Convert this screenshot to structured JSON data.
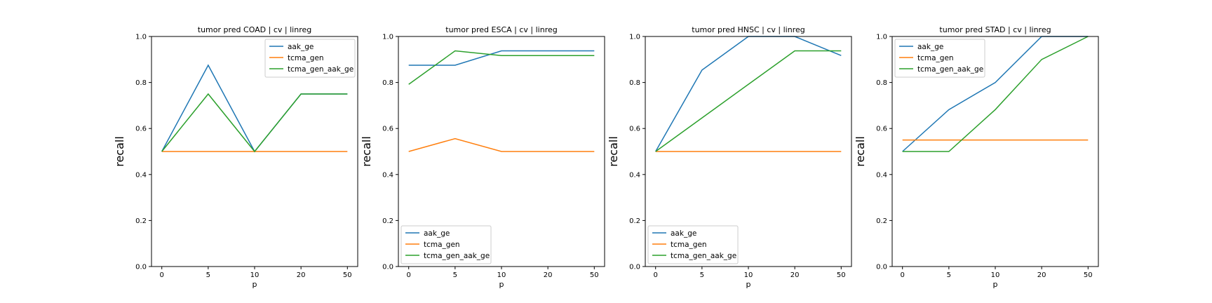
{
  "chart_data": [
    {
      "type": "line",
      "title": "tumor pred COAD | cv | linreg",
      "xlabel": "p",
      "ylabel": "recall",
      "categories": [
        "0",
        "5",
        "10",
        "20",
        "50"
      ],
      "ylim": [
        0.0,
        1.0
      ],
      "yticks": [
        "0.0",
        "0.2",
        "0.4",
        "0.6",
        "0.8",
        "1.0"
      ],
      "legend_loc": "upper right",
      "series": [
        {
          "name": "aak_ge",
          "color": "#1f77b4",
          "values": [
            0.5,
            0.875,
            0.5,
            0.75,
            0.75
          ]
        },
        {
          "name": "tcma_gen",
          "color": "#ff7f0e",
          "values": [
            0.5,
            0.5,
            0.5,
            0.5,
            0.5
          ]
        },
        {
          "name": "tcma_gen_aak_ge",
          "color": "#2ca02c",
          "values": [
            0.5,
            0.75,
            0.5,
            0.75,
            0.75
          ]
        }
      ]
    },
    {
      "type": "line",
      "title": "tumor pred ESCA | cv | linreg",
      "xlabel": "p",
      "ylabel": "recall",
      "categories": [
        "0",
        "5",
        "10",
        "20",
        "50"
      ],
      "ylim": [
        0.0,
        1.0
      ],
      "yticks": [
        "0.0",
        "0.2",
        "0.4",
        "0.6",
        "0.8",
        "1.0"
      ],
      "legend_loc": "lower left",
      "series": [
        {
          "name": "aak_ge",
          "color": "#1f77b4",
          "values": [
            0.875,
            0.875,
            0.9375,
            0.9375,
            0.9375
          ]
        },
        {
          "name": "tcma_gen",
          "color": "#ff7f0e",
          "values": [
            0.5,
            0.556,
            0.5,
            0.5,
            0.5
          ]
        },
        {
          "name": "tcma_gen_aak_ge",
          "color": "#2ca02c",
          "values": [
            0.792,
            0.9375,
            0.917,
            0.917,
            0.917
          ]
        }
      ]
    },
    {
      "type": "line",
      "title": "tumor pred HNSC | cv | linreg",
      "xlabel": "p",
      "ylabel": "recall",
      "categories": [
        "0",
        "5",
        "10",
        "20",
        "50"
      ],
      "ylim": [
        0.0,
        1.0
      ],
      "yticks": [
        "0.0",
        "0.2",
        "0.4",
        "0.6",
        "0.8",
        "1.0"
      ],
      "legend_loc": "lower left",
      "series": [
        {
          "name": "aak_ge",
          "color": "#1f77b4",
          "values": [
            0.5,
            0.854,
            1.0,
            1.0,
            0.917
          ]
        },
        {
          "name": "tcma_gen",
          "color": "#ff7f0e",
          "values": [
            0.5,
            0.5,
            0.5,
            0.5,
            0.5
          ]
        },
        {
          "name": "tcma_gen_aak_ge",
          "color": "#2ca02c",
          "values": [
            0.5,
            0.646,
            0.792,
            0.9375,
            0.9375
          ]
        }
      ]
    },
    {
      "type": "line",
      "title": "tumor pred STAD | cv | linreg",
      "xlabel": "p",
      "ylabel": "recall",
      "categories": [
        "0",
        "5",
        "10",
        "20",
        "50"
      ],
      "ylim": [
        0.0,
        1.0
      ],
      "yticks": [
        "0.0",
        "0.2",
        "0.4",
        "0.6",
        "0.8",
        "1.0"
      ],
      "legend_loc": "upper left",
      "series": [
        {
          "name": "aak_ge",
          "color": "#1f77b4",
          "values": [
            0.5,
            0.682,
            0.8,
            1.0,
            1.0
          ]
        },
        {
          "name": "tcma_gen",
          "color": "#ff7f0e",
          "values": [
            0.55,
            0.55,
            0.55,
            0.55,
            0.55
          ]
        },
        {
          "name": "tcma_gen_aak_ge",
          "color": "#2ca02c",
          "values": [
            0.5,
            0.5,
            0.682,
            0.9,
            1.0
          ]
        }
      ]
    }
  ]
}
